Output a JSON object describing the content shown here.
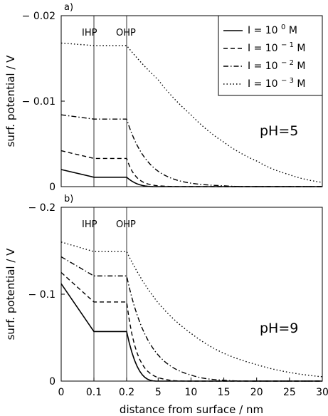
{
  "chart_data": [
    {
      "type": "line",
      "panel_label": "a)",
      "annotation": "pH=5",
      "ylabel": "surf. potential / V",
      "xlabel": "",
      "ylim": [
        0,
        -0.02
      ],
      "y_ticks": [
        0,
        -0.01,
        -0.02
      ],
      "y_tick_labels": [
        "0",
        "− 0.01",
        "− 0.02"
      ],
      "layer_labels": [
        "IHP",
        "OHP"
      ],
      "grid": false,
      "legend_position": "top-right",
      "x": [
        0,
        0.1,
        0.2,
        5,
        10,
        15,
        20,
        25,
        30
      ],
      "series": [
        {
          "legend_prefix": "I = 10",
          "legend_exp": "0",
          "legend_unit": "M",
          "style": "solid",
          "values": [
            -0.002,
            -0.0011,
            -0.0011,
            0,
            0,
            0,
            0,
            0,
            0
          ]
        },
        {
          "legend_prefix": "I = 10",
          "legend_exp": "− 1",
          "legend_unit": "M",
          "style": "dashed",
          "values": [
            -0.0042,
            -0.0033,
            -0.0033,
            -0.0001,
            0,
            0,
            0,
            0,
            0
          ]
        },
        {
          "legend_prefix": "I = 10",
          "legend_exp": "− 2",
          "legend_unit": "M",
          "style": "dashdot",
          "values": [
            -0.0084,
            -0.0079,
            -0.0079,
            -0.0018,
            -0.0004,
            -0.0001,
            0,
            0,
            0
          ]
        },
        {
          "legend_prefix": "I = 10",
          "legend_exp": "− 3",
          "legend_unit": "M",
          "style": "dotted",
          "values": [
            -0.0168,
            -0.0165,
            -0.0165,
            -0.0125,
            -0.0084,
            -0.0052,
            -0.003,
            -0.0014,
            -0.0005
          ]
        }
      ]
    },
    {
      "type": "line",
      "panel_label": "b)",
      "annotation": "pH=9",
      "ylabel": "surf. potential / V",
      "xlabel": "distance from surface / nm",
      "ylim": [
        0,
        -0.2
      ],
      "y_ticks": [
        0,
        -0.1,
        -0.2
      ],
      "y_tick_labels": [
        "0",
        "− 0.1",
        "− 0.2"
      ],
      "x_tick_labels": [
        "0",
        "0.1",
        "0.2",
        "5",
        "10",
        "15",
        "20",
        "25",
        "30"
      ],
      "layer_labels": [
        "IHP",
        "OHP"
      ],
      "grid": false,
      "x": [
        0,
        0.1,
        0.2,
        5,
        10,
        15,
        20,
        25,
        30
      ],
      "series": [
        {
          "style": "solid",
          "values": [
            -0.112,
            -0.057,
            -0.057,
            0,
            0,
            0,
            0,
            0,
            0
          ]
        },
        {
          "style": "dashed",
          "values": [
            -0.125,
            -0.091,
            -0.091,
            -0.004,
            0,
            0,
            0,
            0,
            0
          ]
        },
        {
          "style": "dashdot",
          "values": [
            -0.143,
            -0.121,
            -0.121,
            -0.03,
            -0.007,
            -0.001,
            0,
            0,
            0
          ]
        },
        {
          "style": "dotted",
          "values": [
            -0.16,
            -0.149,
            -0.149,
            -0.09,
            -0.055,
            -0.032,
            -0.019,
            -0.01,
            -0.005
          ]
        }
      ]
    }
  ]
}
